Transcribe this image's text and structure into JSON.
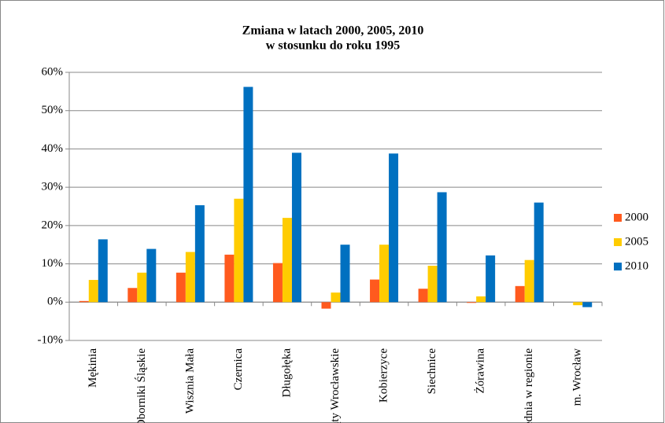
{
  "chart_data": {
    "type": "bar",
    "title": [
      "Zmiana w  latach 2000, 2005, 2010",
      "w stosunku do roku 1995"
    ],
    "categories": [
      "Mękinia",
      "Oborniki Śląskie",
      "Wisznia Mała",
      "Czernica",
      "Długołęka",
      "Kąty Wrocławskie",
      "Kobierzyce",
      "Siechnice",
      "Żórawina",
      "Średnia w regionie",
      "m. Wrocław"
    ],
    "series": [
      {
        "name": "2000",
        "color": "#ff5a1e",
        "values": [
          0.3,
          3.7,
          7.7,
          12.4,
          10.2,
          -1.7,
          5.9,
          3.5,
          -0.2,
          4.2,
          0
        ]
      },
      {
        "name": "2005",
        "color": "#ffcc00",
        "values": [
          5.8,
          7.7,
          13.1,
          27.0,
          22.0,
          2.5,
          15.0,
          9.5,
          1.5,
          11.0,
          -0.8
        ]
      },
      {
        "name": "2010",
        "color": "#0070c0",
        "values": [
          16.4,
          13.9,
          25.3,
          56.2,
          39.0,
          15.0,
          38.8,
          28.7,
          12.2,
          26.0,
          -1.3
        ]
      }
    ],
    "ylim": [
      -10,
      60
    ],
    "yticks": [
      {
        "value": -10,
        "label": "-10%"
      },
      {
        "value": 0,
        "label": "0%"
      },
      {
        "value": 10,
        "label": "10%"
      },
      {
        "value": 20,
        "label": "20%"
      },
      {
        "value": 30,
        "label": "30%"
      },
      {
        "value": 40,
        "label": "40%"
      },
      {
        "value": 50,
        "label": "50%"
      },
      {
        "value": 60,
        "label": "60%"
      }
    ],
    "grid": true,
    "legend": "right"
  }
}
